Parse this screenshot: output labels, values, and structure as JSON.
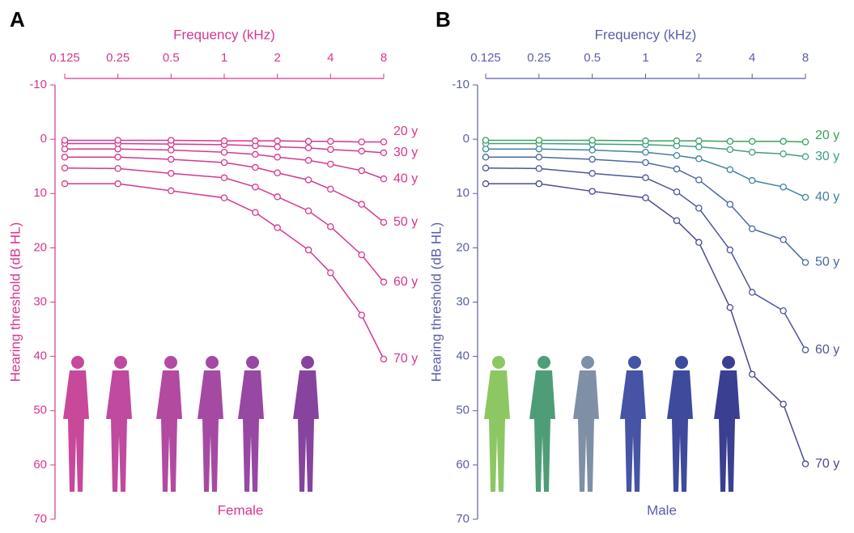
{
  "chart_data": [
    {
      "type": "line",
      "panel": "A",
      "title": "Frequency (kHz)",
      "y_label": "Hearing threshold (dB HL)",
      "caption": "Female",
      "axis_color": "#d6378f",
      "xscale": "log",
      "y_inverted": true,
      "x": [
        0.125,
        0.25,
        0.5,
        1,
        1.5,
        2,
        3,
        4,
        6,
        8
      ],
      "xlim": [
        0.125,
        8
      ],
      "xticks": [
        0.125,
        0.25,
        0.5,
        1,
        2,
        4,
        8
      ],
      "ylim": [
        -10,
        70
      ],
      "yticks": [
        -10,
        0,
        10,
        20,
        30,
        40,
        50,
        60,
        70
      ],
      "series": [
        {
          "name": "20 y",
          "color": "#d6378f",
          "values": [
            0.2,
            0.2,
            0.2,
            0.3,
            0.3,
            0.3,
            0.4,
            0.4,
            0.5,
            0.5
          ]
        },
        {
          "name": "30 y",
          "color": "#d6378f",
          "values": [
            0.8,
            0.8,
            0.9,
            1.0,
            1.2,
            1.4,
            1.6,
            1.9,
            2.2,
            2.5
          ]
        },
        {
          "name": "40 y",
          "color": "#d6378f",
          "values": [
            1.8,
            1.8,
            2.0,
            2.4,
            2.8,
            3.3,
            3.9,
            4.6,
            5.8,
            7.3
          ]
        },
        {
          "name": "50 y",
          "color": "#d6378f",
          "values": [
            3.3,
            3.3,
            3.7,
            4.3,
            5.2,
            6.2,
            7.5,
            9.2,
            12.0,
            15.3
          ]
        },
        {
          "name": "60 y",
          "color": "#d6378f",
          "values": [
            5.3,
            5.4,
            6.3,
            7.1,
            8.8,
            10.6,
            13.2,
            16.1,
            21.3,
            26.3
          ]
        },
        {
          "name": "70 y",
          "color": "#d6378f",
          "values": [
            8.2,
            8.2,
            9.5,
            10.8,
            13.5,
            16.3,
            20.4,
            24.6,
            32.4,
            40.5
          ]
        }
      ]
    },
    {
      "type": "line",
      "panel": "B",
      "title": "Frequency (kHz)",
      "y_label": "Hearing threshold (dB HL)",
      "caption": "Male",
      "axis_color": "#5a5ea8",
      "xscale": "log",
      "y_inverted": true,
      "x": [
        0.125,
        0.25,
        0.5,
        1,
        1.5,
        2,
        3,
        4,
        6,
        8
      ],
      "xlim": [
        0.125,
        8
      ],
      "xticks": [
        0.125,
        0.25,
        0.5,
        1,
        2,
        4,
        8
      ],
      "ylim": [
        -10,
        70
      ],
      "yticks": [
        -10,
        0,
        10,
        20,
        30,
        40,
        50,
        60,
        70
      ],
      "series": [
        {
          "name": "20 y",
          "color": "#3aa35a",
          "values": [
            0.2,
            0.2,
            0.2,
            0.3,
            0.3,
            0.3,
            0.4,
            0.4,
            0.4,
            0.5
          ]
        },
        {
          "name": "30 y",
          "color": "#3c9e86",
          "values": [
            0.8,
            0.8,
            0.9,
            1.0,
            1.2,
            1.4,
            1.9,
            2.4,
            2.7,
            3.2
          ]
        },
        {
          "name": "40 y",
          "color": "#3f84a0",
          "values": [
            1.8,
            1.8,
            2.0,
            2.4,
            3.0,
            3.6,
            5.6,
            7.6,
            8.8,
            10.7
          ]
        },
        {
          "name": "50 y",
          "color": "#4a68a0",
          "values": [
            3.3,
            3.3,
            3.7,
            4.3,
            5.5,
            7.5,
            12.0,
            16.5,
            18.5,
            22.7
          ]
        },
        {
          "name": "60 y",
          "color": "#4d5699",
          "values": [
            5.3,
            5.4,
            6.3,
            7.1,
            9.7,
            12.7,
            20.4,
            28.2,
            31.6,
            38.8
          ]
        },
        {
          "name": "70 y",
          "color": "#4a4a94",
          "values": [
            8.2,
            8.2,
            9.6,
            10.8,
            15.0,
            19.0,
            31.0,
            43.3,
            48.8,
            59.8
          ]
        }
      ]
    }
  ]
}
